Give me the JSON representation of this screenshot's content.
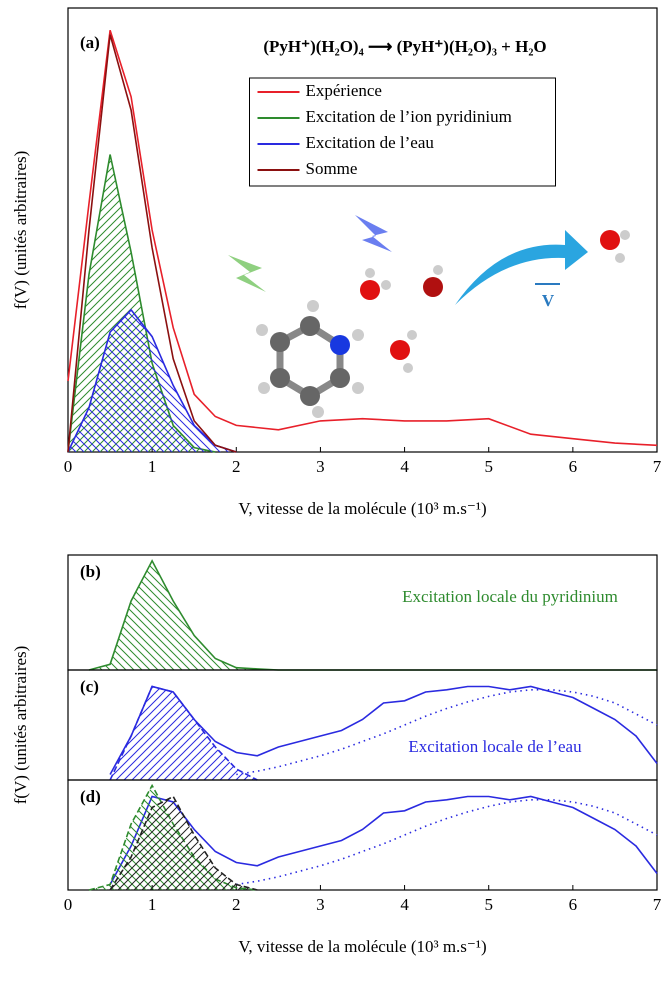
{
  "chart_data": [
    {
      "type": "line",
      "label": "(a)",
      "title": "(PyH⁺)(H₂O)₄ ⟶ (PyH⁺)(H₂O)₃ + H₂O",
      "ylabel": "f(V) (unités arbitraires)",
      "xlabel": "V, vitesse de la molécule (10³ m.s⁻¹)",
      "xlim": [
        0,
        7
      ],
      "ylim": [
        0,
        1
      ],
      "xticks": [
        0,
        1,
        2,
        3,
        4,
        5,
        6,
        7
      ],
      "legend": "upper center",
      "arrow_label": "V",
      "x": [
        0,
        0.25,
        0.5,
        0.75,
        1,
        1.25,
        1.5,
        1.75,
        2,
        2.5,
        3,
        3.5,
        4,
        4.5,
        5,
        5.5,
        6,
        6.5,
        7
      ],
      "series": [
        {
          "name": "Expérience",
          "color": "#e8202a",
          "values": [
            0.16,
            0.56,
            0.95,
            0.8,
            0.5,
            0.28,
            0.13,
            0.08,
            0.06,
            0.05,
            0.07,
            0.075,
            0.07,
            0.07,
            0.075,
            0.04,
            0.03,
            0.02,
            0.015
          ]
        },
        {
          "name": "Excitation de l’ion pyridinium",
          "color": "#2e8b2e",
          "hatch": "right",
          "values": [
            0,
            0.4,
            0.67,
            0.45,
            0.2,
            0.06,
            0.01,
            0,
            null,
            null,
            null,
            null,
            null,
            null,
            null,
            null,
            null,
            null,
            null
          ]
        },
        {
          "name": "Excitation de l’eau",
          "color": "#2a2ae0",
          "hatch": "left",
          "values": [
            0,
            0.1,
            0.27,
            0.32,
            0.26,
            0.15,
            0.06,
            0.015,
            0,
            null,
            null,
            null,
            null,
            null,
            null,
            null,
            null,
            null,
            null
          ]
        },
        {
          "name": "Somme",
          "color": "#8b1010",
          "values": [
            0,
            0.5,
            0.94,
            0.77,
            0.46,
            0.21,
            0.07,
            0.015,
            0,
            null,
            null,
            null,
            null,
            null,
            null,
            null,
            null,
            null,
            null
          ]
        }
      ]
    },
    {
      "type": "line",
      "label": "(b)",
      "xlim": [
        0,
        7
      ],
      "ylim": [
        0,
        1
      ],
      "annotations": [
        {
          "text": "Excitation locale du pyridinium",
          "color": "#2e8b2e"
        }
      ],
      "x": [
        0,
        0.25,
        0.5,
        0.75,
        1,
        1.25,
        1.5,
        1.75,
        2,
        2.25,
        2.5,
        2.75,
        3,
        3.25,
        3.5,
        3.75,
        4,
        4.25,
        4.5,
        4.75,
        5,
        5.25,
        5.5,
        5.75,
        6,
        6.25,
        6.5,
        6.75,
        7
      ],
      "series": [
        {
          "color": "#2e8b2e",
          "hatch": "left",
          "values": [
            null,
            0,
            0.05,
            0.6,
            0.95,
            0.6,
            0.3,
            0.1,
            0.02,
            0.01,
            0,
            0,
            0,
            0,
            0,
            0,
            0,
            0,
            0,
            0,
            0,
            0,
            0,
            0,
            0,
            0,
            0,
            0,
            0
          ]
        }
      ]
    },
    {
      "type": "line",
      "label": "(c)",
      "ylabel": "f(V) (unités arbitraires)",
      "xlim": [
        0,
        7
      ],
      "ylim": [
        0,
        1
      ],
      "annotations": [
        {
          "text": "Excitation locale de l’eau",
          "color": "#2a2ae0"
        }
      ],
      "x": [
        0,
        0.25,
        0.5,
        0.75,
        1,
        1.25,
        1.5,
        1.75,
        2,
        2.25,
        2.5,
        2.75,
        3,
        3.25,
        3.5,
        3.75,
        4,
        4.25,
        4.5,
        4.75,
        5,
        5.25,
        5.5,
        5.75,
        6,
        6.25,
        6.5,
        6.75,
        7
      ],
      "series": [
        {
          "color": "#2a2ae0",
          "values": [
            null,
            null,
            0.05,
            0.4,
            0.85,
            0.8,
            0.55,
            0.35,
            0.25,
            0.22,
            0.3,
            0.35,
            0.4,
            0.45,
            0.55,
            0.7,
            0.72,
            0.8,
            0.82,
            0.85,
            0.85,
            0.82,
            0.85,
            0.8,
            0.75,
            0.65,
            0.55,
            0.4,
            0.15
          ]
        },
        {
          "color": "#2a2ae0",
          "dash": "dotted",
          "values": [
            null,
            null,
            null,
            null,
            null,
            null,
            null,
            null,
            0.05,
            0.08,
            0.12,
            0.17,
            0.22,
            0.28,
            0.35,
            0.42,
            0.5,
            0.58,
            0.65,
            0.71,
            0.76,
            0.8,
            0.82,
            0.82,
            0.8,
            0.76,
            0.7,
            0.6,
            0.5
          ]
        },
        {
          "color": "#2a2ae0",
          "dash": "dashed",
          "hatch": "right",
          "values": [
            null,
            null,
            0,
            0.4,
            0.85,
            0.8,
            0.55,
            0.3,
            0.1,
            0,
            null,
            null,
            null,
            null,
            null,
            null,
            null,
            null,
            null,
            null,
            null,
            null,
            null,
            null,
            null,
            null,
            null,
            null,
            null
          ]
        }
      ]
    },
    {
      "type": "line",
      "label": "(d)",
      "xlabel": "V, vitesse de la molécule (10³ m.s⁻¹)",
      "xlim": [
        0,
        7
      ],
      "ylim": [
        0,
        1
      ],
      "xticks": [
        0,
        1,
        2,
        3,
        4,
        5,
        6,
        7
      ],
      "x": [
        0,
        0.25,
        0.5,
        0.75,
        1,
        1.25,
        1.5,
        1.75,
        2,
        2.25,
        2.5,
        2.75,
        3,
        3.25,
        3.5,
        3.75,
        4,
        4.25,
        4.5,
        4.75,
        5,
        5.25,
        5.5,
        5.75,
        6,
        6.25,
        6.5,
        6.75,
        7
      ],
      "series": [
        {
          "color": "#2a2ae0",
          "values": [
            null,
            null,
            0.05,
            0.4,
            0.85,
            0.8,
            0.55,
            0.35,
            0.25,
            0.22,
            0.3,
            0.35,
            0.4,
            0.45,
            0.55,
            0.7,
            0.72,
            0.8,
            0.82,
            0.85,
            0.85,
            0.82,
            0.85,
            0.8,
            0.75,
            0.65,
            0.55,
            0.4,
            0.15
          ]
        },
        {
          "color": "#2a2ae0",
          "dash": "dotted",
          "values": [
            null,
            null,
            null,
            null,
            null,
            null,
            null,
            null,
            0.05,
            0.08,
            0.12,
            0.17,
            0.22,
            0.28,
            0.35,
            0.42,
            0.5,
            0.58,
            0.65,
            0.71,
            0.76,
            0.8,
            0.82,
            0.82,
            0.8,
            0.76,
            0.7,
            0.6,
            0.5
          ]
        },
        {
          "color": "#2e8b2e",
          "dash": "dashed",
          "hatch": "left",
          "values": [
            null,
            0,
            0.05,
            0.6,
            0.95,
            0.6,
            0.3,
            0.1,
            0.02,
            0,
            null,
            null,
            null,
            null,
            null,
            null,
            null,
            null,
            null,
            null,
            null,
            null,
            null,
            null,
            null,
            null,
            null,
            null,
            null
          ]
        },
        {
          "color": "#222222",
          "dash": "dashed",
          "hatch": "right",
          "values": [
            null,
            null,
            0,
            0.3,
            0.75,
            0.85,
            0.5,
            0.2,
            0.05,
            0,
            null,
            null,
            null,
            null,
            null,
            null,
            null,
            null,
            null,
            null,
            null,
            null,
            null,
            null,
            null,
            null,
            null,
            null,
            null
          ]
        }
      ]
    }
  ]
}
